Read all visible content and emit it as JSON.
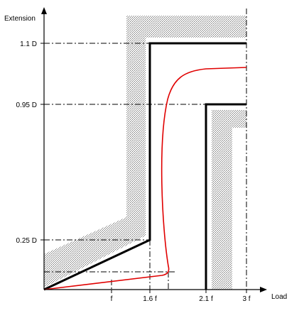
{
  "axes": {
    "y_label": "Extension",
    "x_label": "Load"
  },
  "y_ticks": [
    "1.1 D",
    "0.95 D",
    "0.25 D"
  ],
  "x_ticks": [
    "f",
    "1.6 f",
    "2.1 f",
    "3 f"
  ]
}
